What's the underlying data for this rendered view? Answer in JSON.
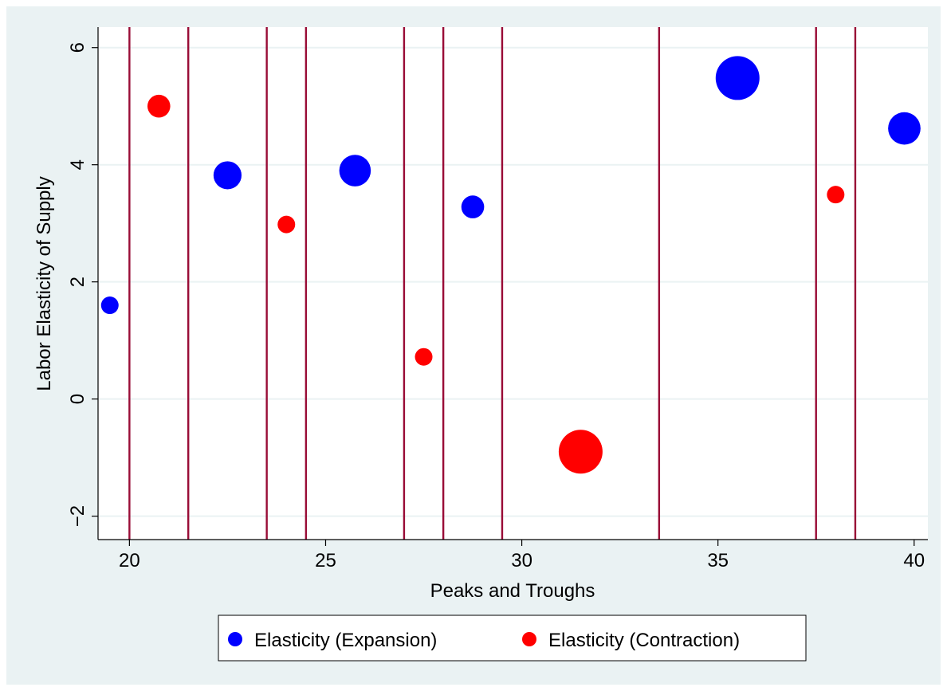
{
  "chart_data": {
    "type": "scatter",
    "title": "",
    "xlabel": "Peaks and Troughs",
    "ylabel": "Labor Elasticity of Supply",
    "xlim": [
      19.2,
      40.35
    ],
    "ylim": [
      -2.4,
      6.35
    ],
    "x_ticks": [
      20,
      25,
      30,
      35,
      40
    ],
    "y_ticks": [
      -2,
      0,
      2,
      4,
      6
    ],
    "grid": "horizontal",
    "legend_position": "bottom",
    "vertical_lines": [
      20,
      21.5,
      23.5,
      24.5,
      27,
      28,
      29.5,
      33.5,
      37.5,
      38.5
    ],
    "series": [
      {
        "name": "Elasticity (Expansion)",
        "color": "#0000ff",
        "points": [
          {
            "x": 19.5,
            "y": 1.6,
            "size": 1.0
          },
          {
            "x": 22.5,
            "y": 3.82,
            "size": 1.6
          },
          {
            "x": 25.75,
            "y": 3.9,
            "size": 1.8
          },
          {
            "x": 28.75,
            "y": 3.28,
            "size": 1.3
          },
          {
            "x": 35.5,
            "y": 5.48,
            "size": 2.5
          },
          {
            "x": 39.75,
            "y": 4.62,
            "size": 1.85
          }
        ]
      },
      {
        "name": "Elasticity (Contraction)",
        "color": "#ff0000",
        "points": [
          {
            "x": 20.75,
            "y": 5.0,
            "size": 1.3
          },
          {
            "x": 24.0,
            "y": 2.98,
            "size": 1.0
          },
          {
            "x": 27.5,
            "y": 0.72,
            "size": 1.0
          },
          {
            "x": 31.5,
            "y": -0.9,
            "size": 2.5
          },
          {
            "x": 38.0,
            "y": 3.49,
            "size": 1.0
          }
        ]
      }
    ],
    "colors": {
      "outer_background": "#eaf2f3",
      "plot_background": "#ffffff",
      "grid": "#eaf2f3",
      "reference_line": "#990c36",
      "axis": "#000000"
    }
  }
}
